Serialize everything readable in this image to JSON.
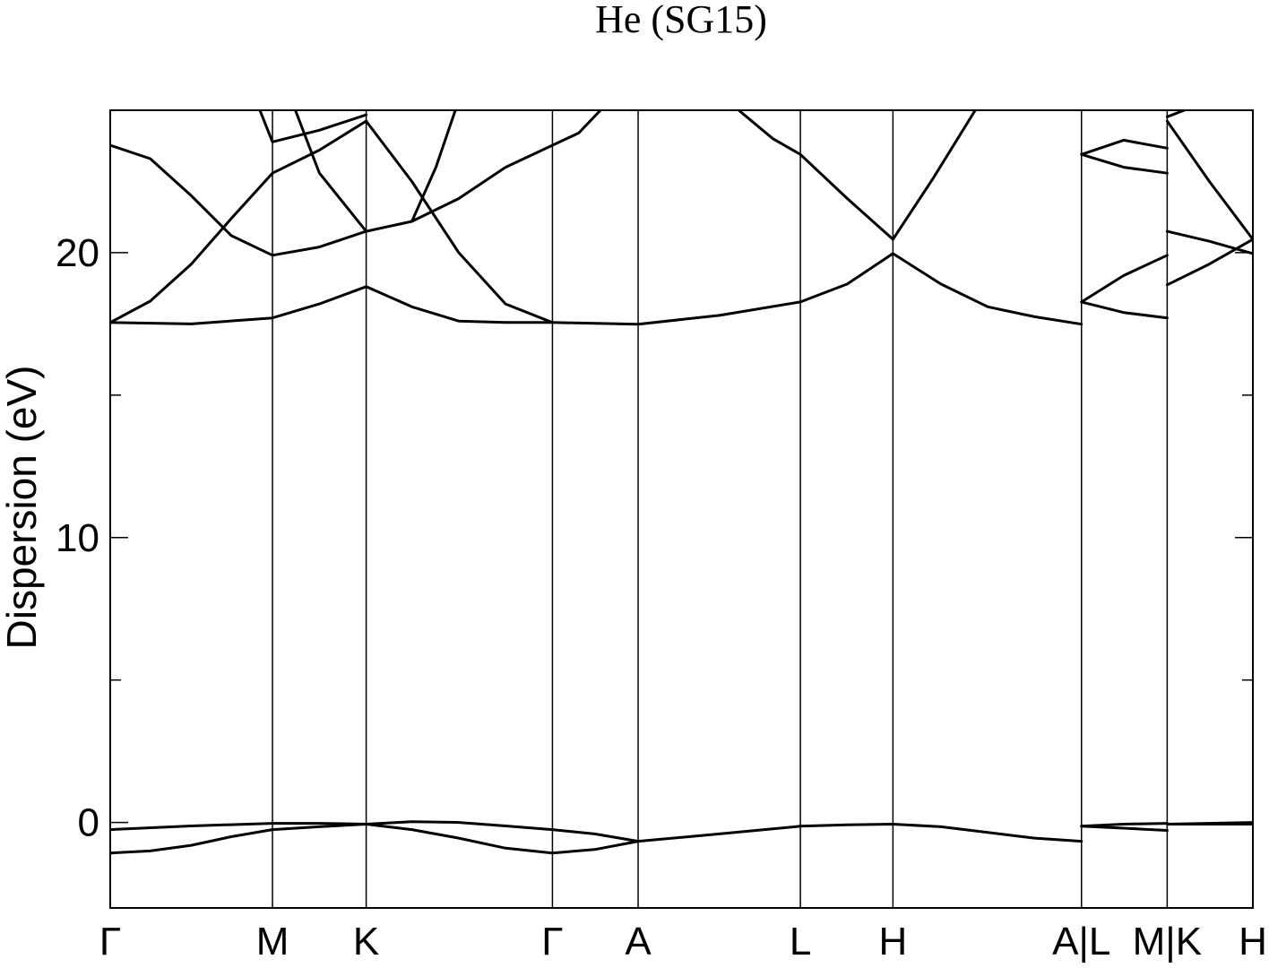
{
  "chart_data": {
    "type": "line",
    "title": "He (SG15)",
    "ylabel": "Dispersion (eV)",
    "xlim": [
      0,
      1
    ],
    "ylim": [
      -3,
      25
    ],
    "yticks": [
      0,
      10,
      20
    ],
    "yminorticks": [
      5,
      15
    ],
    "xticks": [
      {
        "value": 0,
        "label": "Γ"
      },
      {
        "value": 0.142,
        "label": "M"
      },
      {
        "value": 0.224,
        "label": "K"
      },
      {
        "value": 0.387,
        "label": "Γ"
      },
      {
        "value": 0.462,
        "label": "A"
      },
      {
        "value": 0.604,
        "label": "L"
      },
      {
        "value": 0.685,
        "label": "H"
      },
      {
        "value": 0.85,
        "label": "A|L"
      },
      {
        "value": 0.925,
        "label": "M|K"
      },
      {
        "value": 1,
        "label": "H"
      }
    ],
    "xgrid": true,
    "color": "#000000",
    "series": [
      {
        "x": [
          0,
          0.035,
          0.071,
          0.106,
          0.142,
          0.183,
          0.224,
          0.264,
          0.305,
          0.346,
          0.387,
          0.424,
          0.462,
          0.533,
          0.604,
          0.645,
          0.685,
          0.727,
          0.768,
          0.809,
          0.85
        ],
        "values": [
          -1.07,
          -1.0,
          -0.8,
          -0.5,
          -0.25,
          -0.15,
          -0.06,
          -0.25,
          -0.55,
          -0.9,
          -1.07,
          -0.95,
          -0.66,
          -0.4,
          -0.13,
          -0.08,
          -0.06,
          -0.15,
          -0.35,
          -0.55,
          -0.66
        ]
      },
      {
        "x": [
          0,
          0.071,
          0.142,
          0.183,
          0.224,
          0.264,
          0.305,
          0.346,
          0.387,
          0.424,
          0.462
        ],
        "values": [
          -0.25,
          -0.12,
          -0.03,
          -0.03,
          -0.06,
          0.03,
          0.0,
          -0.12,
          -0.25,
          -0.4,
          -0.66
        ]
      },
      {
        "x": [
          0.85,
          0.887,
          0.925
        ],
        "values": [
          -0.13,
          -0.2,
          -0.28
        ]
      },
      {
        "x": [
          0.85,
          0.887,
          0.925
        ],
        "values": [
          -0.13,
          -0.06,
          -0.03
        ]
      },
      {
        "x": [
          0.925,
          1
        ],
        "values": [
          -0.06,
          -0.06
        ]
      },
      {
        "x": [
          0.925,
          1
        ],
        "values": [
          -0.06,
          0.0
        ]
      },
      {
        "x": [
          0,
          0.071,
          0.142,
          0.183,
          0.224,
          0.264,
          0.305,
          0.346,
          0.387,
          0.462,
          0.533,
          0.604,
          0.645,
          0.685,
          0.727,
          0.768,
          0.809,
          0.85
        ],
        "values": [
          17.55,
          17.5,
          17.71,
          18.2,
          18.81,
          18.1,
          17.6,
          17.55,
          17.55,
          17.49,
          17.8,
          18.27,
          18.9,
          19.97,
          18.9,
          18.1,
          17.75,
          17.49
        ]
      },
      {
        "x": [
          0,
          0.035,
          0.071,
          0.106,
          0.142,
          0.183,
          0.224
        ],
        "values": [
          17.55,
          18.3,
          19.6,
          21.2,
          22.79,
          23.6,
          24.62
        ]
      },
      {
        "x": [
          0,
          0.035,
          0.071,
          0.106,
          0.142,
          0.183,
          0.224
        ],
        "values": [
          23.77,
          23.3,
          22.0,
          20.6,
          19.91,
          20.2,
          20.75
        ]
      },
      {
        "x": [
          0.131,
          0.142,
          0.183,
          0.224
        ],
        "values": [
          25,
          23.89,
          24.3,
          24.84
        ]
      },
      {
        "x": [
          0.162,
          0.183,
          0.224
        ],
        "values": [
          25,
          22.8,
          20.75
        ]
      },
      {
        "x": [
          0.224,
          0.264,
          0.305,
          0.346,
          0.387
        ],
        "values": [
          20.75,
          21.1,
          21.9,
          23.0,
          23.77
        ]
      },
      {
        "x": [
          0.264,
          0.285,
          0.302
        ],
        "values": [
          21.1,
          23.0,
          25
        ]
      },
      {
        "x": [
          0.224,
          0.264,
          0.305,
          0.346,
          0.387
        ],
        "values": [
          24.62,
          22.5,
          20.0,
          18.2,
          17.55
        ]
      },
      {
        "x": [
          0.387,
          0.41,
          0.429
        ],
        "values": [
          23.77,
          24.2,
          25
        ]
      },
      {
        "x": [
          0.55,
          0.58,
          0.604,
          0.645,
          0.685,
          0.72,
          0.757
        ],
        "values": [
          25,
          24.0,
          23.45,
          21.9,
          20.47,
          22.6,
          25
        ]
      },
      {
        "x": [
          0.85,
          0.887,
          0.925
        ],
        "values": [
          23.45,
          23.95,
          23.67
        ]
      },
      {
        "x": [
          0.85,
          0.887,
          0.925
        ],
        "values": [
          23.45,
          23.0,
          22.79
        ]
      },
      {
        "x": [
          0.85,
          0.887,
          0.925
        ],
        "values": [
          18.27,
          19.2,
          19.91
        ]
      },
      {
        "x": [
          0.85,
          0.887,
          0.925
        ],
        "values": [
          18.27,
          17.9,
          17.71
        ]
      },
      {
        "x": [
          0.925,
          0.94
        ],
        "values": [
          24.77,
          25
        ]
      },
      {
        "x": [
          0.925,
          0.962,
          1
        ],
        "values": [
          24.62,
          22.5,
          20.47
        ]
      },
      {
        "x": [
          0.925,
          0.962,
          1
        ],
        "values": [
          20.75,
          20.4,
          19.97
        ]
      },
      {
        "x": [
          0.925,
          0.962,
          1
        ],
        "values": [
          18.87,
          19.6,
          20.47
        ]
      }
    ]
  }
}
